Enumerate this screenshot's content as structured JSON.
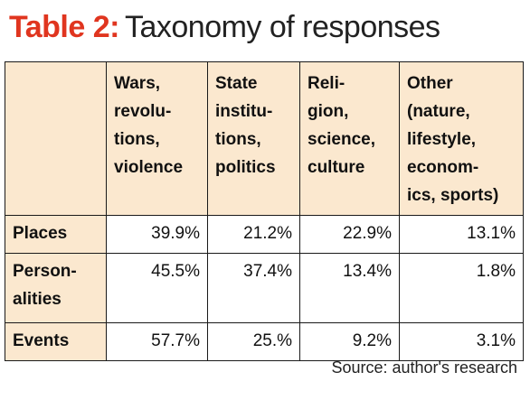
{
  "title": {
    "label": "Table 2:",
    "text": "Taxonomy of responses"
  },
  "colors": {
    "accent": "#e0351f",
    "header_background": "#fbe8cf",
    "border": "#1a1a1a"
  },
  "chart_data": {
    "type": "table",
    "title": "Table 2: Taxonomy of responses",
    "columns": [
      "Wars, revolu-tions, violence",
      "State institu-tions, politics",
      "Reli-gion, science, culture",
      "Other (nature, lifestyle, econom-ics, sports)"
    ],
    "column_lines": [
      [
        "Wars,",
        "revolu-",
        "tions,",
        "violence"
      ],
      [
        "State",
        "institu-",
        "tions,",
        "politics"
      ],
      [
        "Reli-",
        "gion,",
        "science,",
        "culture"
      ],
      [
        "Other",
        "(nature,",
        "lifestyle,",
        "econom-",
        "ics, sports)"
      ]
    ],
    "rows": [
      {
        "label": "Places",
        "label_lines": [
          "Places"
        ],
        "values": [
          "39.9%",
          "21.2%",
          "22.9%",
          "13.1%"
        ]
      },
      {
        "label": "Person-alities",
        "label_lines": [
          "Person-",
          "alities"
        ],
        "values": [
          "45.5%",
          "37.4%",
          "13.4%",
          "1.8%"
        ]
      },
      {
        "label": "Events",
        "label_lines": [
          "Events"
        ],
        "values": [
          "57.7%",
          "25.%",
          "9.2%",
          "3.1%"
        ]
      }
    ],
    "source": "Source: author's research"
  }
}
